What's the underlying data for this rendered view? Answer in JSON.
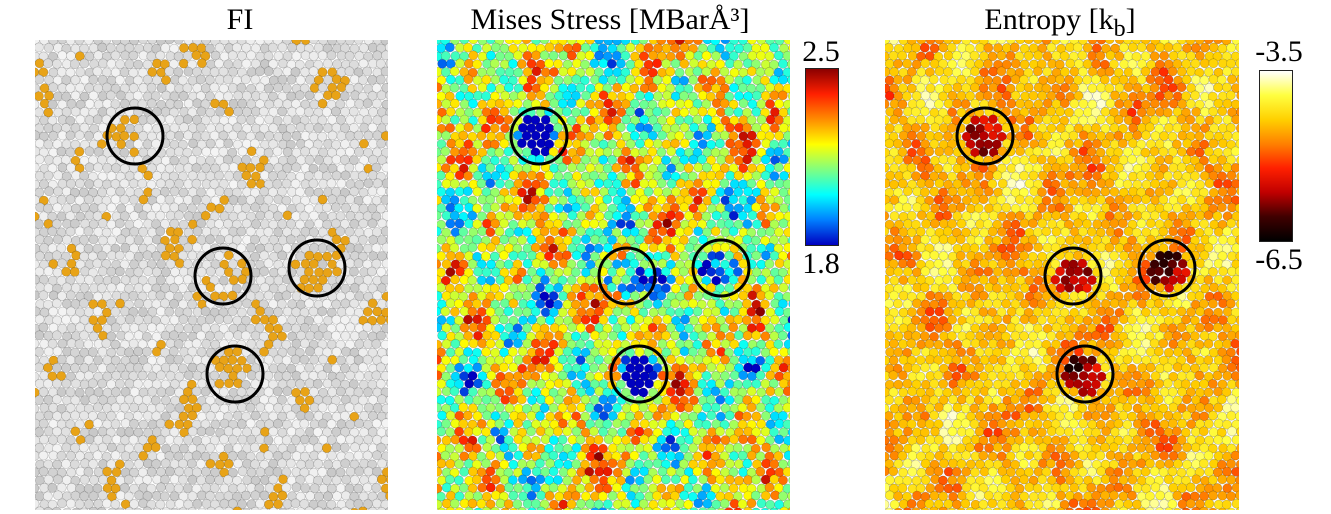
{
  "panels": [
    {
      "title": "FI"
    },
    {
      "title": "Mises Stress [MBarÅ³]"
    },
    {
      "title": "Entropy [k",
      "title_sub": "b",
      "title_end": "]"
    }
  ],
  "colorbars": {
    "stress": {
      "max": "2.5",
      "min": "1.8",
      "stops": [
        "#8b0000",
        "#ff2000",
        "#ff8c00",
        "#ffff00",
        "#80ff80",
        "#00ffff",
        "#0080ff",
        "#0000c0"
      ]
    },
    "entropy": {
      "max": "-3.5",
      "min": "-6.5",
      "stops": [
        "#ffffff",
        "#ffff40",
        "#ffd000",
        "#ff8000",
        "#ff2000",
        "#c00000",
        "#400000",
        "#000000"
      ]
    }
  },
  "colors": {
    "fi_normal": "#d8d8d8",
    "fi_highlight": "#e8a317",
    "ring": "#000000"
  }
}
